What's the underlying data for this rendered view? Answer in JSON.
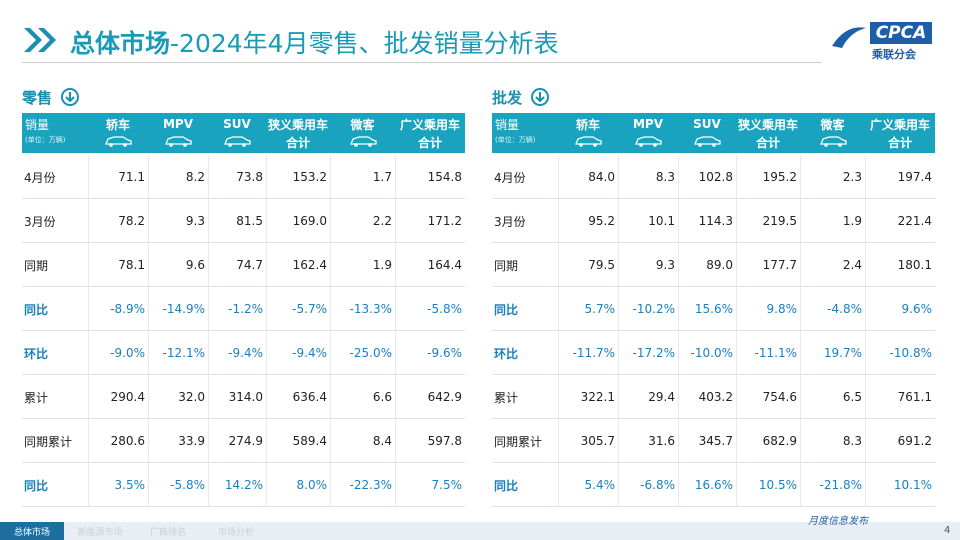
{
  "header": {
    "title_bold": "总体市场",
    "title_rest": "-2024年4月零售、批发销量分析表",
    "logo_en": "CPCA",
    "logo_cn": "乘联分会"
  },
  "tables": [
    {
      "title": "零售",
      "unit_label": "销量",
      "unit_note": "(单位：万辆)",
      "columns": [
        [
          "轿车"
        ],
        [
          "MPV"
        ],
        [
          "SUV"
        ],
        [
          "狭义乘用车",
          "合计"
        ],
        [
          "微客"
        ],
        [
          "广义乘用车",
          "合计"
        ]
      ],
      "rows": [
        {
          "label": "4月份",
          "cells": [
            "71.1",
            "8.2",
            "73.8",
            "153.2",
            "1.7",
            "154.8"
          ]
        },
        {
          "label": "3月份",
          "cells": [
            "78.2",
            "9.3",
            "81.5",
            "169.0",
            "2.2",
            "171.2"
          ]
        },
        {
          "label": "同期",
          "cells": [
            "78.1",
            "9.6",
            "74.7",
            "162.4",
            "1.9",
            "164.4"
          ]
        },
        {
          "label": "同比",
          "cells": [
            "-8.9%",
            "-14.9%",
            "-1.2%",
            "-5.7%",
            "-13.3%",
            "-5.8%"
          ]
        },
        {
          "label": "环比",
          "cells": [
            "-9.0%",
            "-12.1%",
            "-9.4%",
            "-9.4%",
            "-25.0%",
            "-9.6%"
          ]
        },
        {
          "label": "累计",
          "cells": [
            "290.4",
            "32.0",
            "314.0",
            "636.4",
            "6.6",
            "642.9"
          ]
        },
        {
          "label": "同期累计",
          "cells": [
            "280.6",
            "33.9",
            "274.9",
            "589.4",
            "8.4",
            "597.8"
          ]
        },
        {
          "label": "同比",
          "cells": [
            "3.5%",
            "-5.8%",
            "14.2%",
            "8.0%",
            "-22.3%",
            "7.5%"
          ]
        }
      ]
    },
    {
      "title": "批发",
      "unit_label": "销量",
      "unit_note": "(单位：万辆)",
      "columns": [
        [
          "轿车"
        ],
        [
          "MPV"
        ],
        [
          "SUV"
        ],
        [
          "狭义乘用车",
          "合计"
        ],
        [
          "微客"
        ],
        [
          "广义乘用车",
          "合计"
        ]
      ],
      "rows": [
        {
          "label": "4月份",
          "cells": [
            "84.0",
            "8.3",
            "102.8",
            "195.2",
            "2.3",
            "197.4"
          ]
        },
        {
          "label": "3月份",
          "cells": [
            "95.2",
            "10.1",
            "114.3",
            "219.5",
            "1.9",
            "221.4"
          ]
        },
        {
          "label": "同期",
          "cells": [
            "79.5",
            "9.3",
            "89.0",
            "177.7",
            "2.4",
            "180.1"
          ]
        },
        {
          "label": "同比",
          "cells": [
            "5.7%",
            "-10.2%",
            "15.6%",
            "9.8%",
            "-4.8%",
            "9.6%"
          ]
        },
        {
          "label": "环比",
          "cells": [
            "-11.7%",
            "-17.2%",
            "-10.0%",
            "-11.1%",
            "19.7%",
            "-10.8%"
          ]
        },
        {
          "label": "累计",
          "cells": [
            "322.1",
            "29.4",
            "403.2",
            "754.6",
            "6.5",
            "761.1"
          ]
        },
        {
          "label": "同期累计",
          "cells": [
            "305.7",
            "31.6",
            "345.7",
            "682.9",
            "8.3",
            "691.2"
          ]
        },
        {
          "label": "同比",
          "cells": [
            "5.4%",
            "-6.8%",
            "16.6%",
            "10.5%",
            "-21.8%",
            "10.1%"
          ]
        }
      ]
    }
  ],
  "footer": {
    "tabs": [
      "总体市场",
      "新能源市场",
      "厂商排名",
      "市场分析"
    ],
    "tagline": "月度信息发布",
    "page": "4"
  }
}
